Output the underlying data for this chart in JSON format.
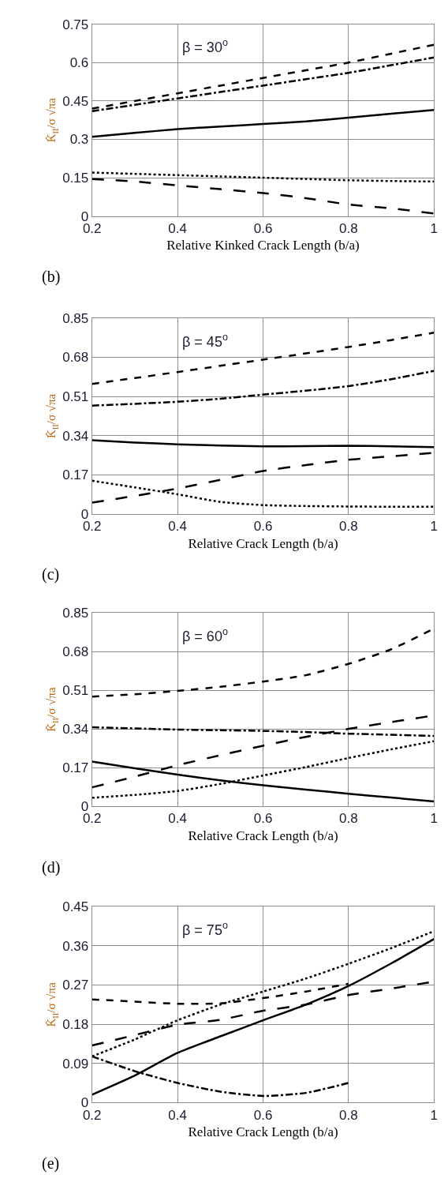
{
  "chart_data": [
    {
      "type": "line",
      "title": "β = 30$^{o}$",
      "xlabel": "Relative Kinked Crack Length (b/a)",
      "ylabel": "K̂$_{II}$/σ √πa",
      "annotations": [
        "(b)"
      ],
      "x": [
        0.2,
        0.3,
        0.4,
        0.5,
        0.6,
        0.7,
        0.8,
        0.9,
        1.0
      ],
      "xlim": [
        0.2,
        1
      ],
      "xticks": [
        0.2,
        0.4,
        0.6,
        0.8,
        1
      ],
      "ylim": [
        0,
        0.75
      ],
      "yticks": [
        0,
        0.15,
        0.3,
        0.45,
        0.6,
        0.75
      ],
      "grid": true,
      "marker": "none",
      "series": [
        {
          "color": "#000000",
          "line_style": "dashed",
          "values": [
            0.42,
            0.45,
            0.48,
            0.51,
            0.54,
            0.57,
            0.6,
            0.635,
            0.67
          ]
        },
        {
          "color": "#000000",
          "line_style": "dashdot",
          "values": [
            0.41,
            0.435,
            0.46,
            0.485,
            0.51,
            0.535,
            0.56,
            0.59,
            0.62
          ]
        },
        {
          "color": "#000000",
          "line_style": "solid",
          "values": [
            0.31,
            0.325,
            0.34,
            0.35,
            0.36,
            0.37,
            0.385,
            0.4,
            0.415
          ]
        },
        {
          "color": "#000000",
          "line_style": "dotted",
          "values": [
            0.17,
            0.165,
            0.16,
            0.155,
            0.15,
            0.145,
            0.14,
            0.137,
            0.135
          ]
        },
        {
          "color": "#000000",
          "line_style": "longdash",
          "values": [
            0.145,
            0.135,
            0.12,
            0.105,
            0.09,
            0.07,
            0.045,
            0.03,
            0.01
          ]
        }
      ]
    },
    {
      "type": "line",
      "title": "β = 45$^{o}$",
      "xlabel": "Relative Crack Length (b/a)",
      "ylabel": "K̂$_{II}$/σ √πa",
      "annotations": [
        "(c)"
      ],
      "x": [
        0.2,
        0.3,
        0.4,
        0.5,
        0.6,
        0.7,
        0.8,
        0.9,
        1.0
      ],
      "xlim": [
        0.2,
        1
      ],
      "xticks": [
        0.2,
        0.4,
        0.6,
        0.8,
        1
      ],
      "ylim": [
        0,
        0.85
      ],
      "yticks": [
        0,
        0.17,
        0.34,
        0.51,
        0.68,
        0.85
      ],
      "grid": true,
      "marker": "none",
      "series": [
        {
          "color": "#000000",
          "line_style": "dashed",
          "values": [
            0.564,
            0.59,
            0.616,
            0.643,
            0.67,
            0.697,
            0.725,
            0.755,
            0.787
          ]
        },
        {
          "color": "#000000",
          "line_style": "dashdot",
          "values": [
            0.47,
            0.478,
            0.487,
            0.5,
            0.518,
            0.535,
            0.555,
            0.585,
            0.621
          ]
        },
        {
          "color": "#000000",
          "line_style": "solid",
          "values": [
            0.32,
            0.31,
            0.302,
            0.297,
            0.293,
            0.294,
            0.296,
            0.293,
            0.29
          ]
        },
        {
          "color": "#000000",
          "line_style": "dotted",
          "values": [
            0.144,
            0.115,
            0.085,
            0.052,
            0.038,
            0.034,
            0.032,
            0.031,
            0.031
          ]
        },
        {
          "color": "#000000",
          "line_style": "longdash",
          "values": [
            0.049,
            0.078,
            0.11,
            0.148,
            0.186,
            0.212,
            0.235,
            0.25,
            0.265
          ]
        }
      ]
    },
    {
      "type": "line",
      "title": "β = 60$^{o}$",
      "xlabel": "Relative Crack Length (b/a)",
      "ylabel": "K̂$_{II}$/σ √πa",
      "annotations": [
        "(d)"
      ],
      "x": [
        0.2,
        0.3,
        0.4,
        0.5,
        0.6,
        0.7,
        0.8,
        0.9,
        1.0
      ],
      "xlim": [
        0.2,
        1
      ],
      "xticks": [
        0.2,
        0.4,
        0.6,
        0.8,
        1
      ],
      "ylim": [
        0,
        0.85
      ],
      "yticks": [
        0,
        0.17,
        0.34,
        0.51,
        0.68,
        0.85
      ],
      "grid": true,
      "marker": "none",
      "series": [
        {
          "color": "#000000",
          "line_style": "dashed",
          "values": [
            0.482,
            0.492,
            0.507,
            0.525,
            0.548,
            0.576,
            0.626,
            0.69,
            0.781
          ]
        },
        {
          "color": "#000000",
          "line_style": "dashdot",
          "values": [
            0.347,
            0.342,
            0.337,
            0.334,
            0.331,
            0.326,
            0.319,
            0.314,
            0.309
          ]
        },
        {
          "color": "#000000",
          "line_style": "solid",
          "values": [
            0.196,
            0.167,
            0.139,
            0.114,
            0.092,
            0.073,
            0.055,
            0.038,
            0.021
          ]
        },
        {
          "color": "#000000",
          "line_style": "dotted",
          "values": [
            0.037,
            0.05,
            0.067,
            0.098,
            0.135,
            0.172,
            0.212,
            0.25,
            0.286
          ]
        },
        {
          "color": "#000000",
          "line_style": "longdash",
          "values": [
            0.083,
            0.13,
            0.18,
            0.224,
            0.266,
            0.305,
            0.34,
            0.37,
            0.399
          ]
        }
      ]
    },
    {
      "type": "line",
      "title": "β = 75$^{o}$",
      "xlabel": "Relative Crack Length (b/a)",
      "ylabel": "K̂$_{II}$/σ √πa",
      "annotations": [
        "(e)"
      ],
      "x": [
        0.2,
        0.3,
        0.4,
        0.5,
        0.6,
        0.7,
        0.8,
        0.9,
        1.0
      ],
      "xlim": [
        0.2,
        1
      ],
      "xticks": [
        0.2,
        0.4,
        0.6,
        0.8,
        1
      ],
      "ylim": [
        0,
        0.45
      ],
      "yticks": [
        0,
        0.09,
        0.18,
        0.27,
        0.36,
        0.45
      ],
      "grid": true,
      "marker": "none",
      "series": [
        {
          "color": "#000000",
          "line_style": "dashed",
          "values": [
            0.237,
            0.232,
            0.227,
            0.228,
            0.24,
            0.255,
            0.273,
            null,
            null
          ]
        },
        {
          "color": "#000000",
          "line_style": "dashdot",
          "values": [
            0.106,
            0.072,
            0.045,
            0.025,
            0.015,
            0.022,
            0.045,
            null,
            null
          ]
        },
        {
          "color": "#000000",
          "line_style": "solid",
          "values": [
            0.018,
            0.062,
            0.114,
            0.152,
            0.189,
            0.225,
            0.268,
            0.32,
            0.376
          ]
        },
        {
          "color": "#000000",
          "line_style": "dotted",
          "values": [
            0.106,
            0.145,
            0.189,
            0.225,
            0.255,
            0.285,
            0.319,
            0.355,
            0.394
          ]
        },
        {
          "color": "#000000",
          "line_style": "longdash",
          "values": [
            0.131,
            0.155,
            0.179,
            0.19,
            0.211,
            0.225,
            0.247,
            0.262,
            0.278
          ]
        }
      ]
    }
  ]
}
